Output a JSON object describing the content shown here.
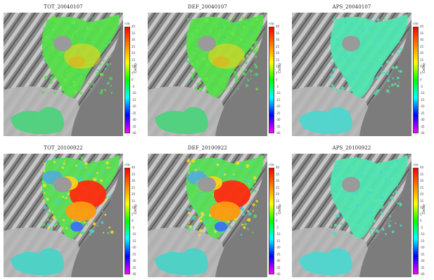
{
  "panels": [
    {
      "title": "TOT_20040107",
      "pattern": "green"
    },
    {
      "title": "DEF_20040107",
      "pattern": "green"
    },
    {
      "title": "APS_20040107",
      "pattern": "cyan"
    },
    {
      "title": "TOT_20100922",
      "pattern": "hot"
    },
    {
      "title": "DEF_20100922",
      "pattern": "hot"
    },
    {
      "title": "APS_20100922",
      "pattern": "cyan"
    }
  ],
  "colorbar": {
    "label": "Delay",
    "unit": "cm",
    "ticks": [
      "40",
      "35",
      "30",
      "25",
      "20",
      "15",
      "10",
      "5",
      "0",
      "-5",
      "-10",
      "-15",
      "-20",
      "-25",
      "-30",
      "-35",
      "-40"
    ],
    "colors": [
      "#ff00ff",
      "#0000ff",
      "#00ffff",
      "#00ff00",
      "#ffff00",
      "#ff8000",
      "#ff0000"
    ]
  }
}
